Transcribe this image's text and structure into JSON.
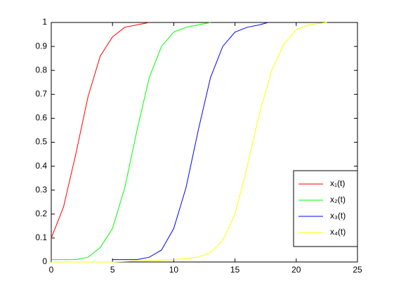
{
  "chart_data": {
    "type": "line",
    "xlim": [
      0,
      25
    ],
    "ylim": [
      0,
      1
    ],
    "xticks": [
      0,
      5,
      10,
      15,
      20,
      25
    ],
    "yticks": [
      0,
      0.1,
      0.2,
      0.3,
      0.4,
      0.5,
      0.6,
      0.7,
      0.8,
      0.9,
      1
    ],
    "legend": "lower right",
    "series": [
      {
        "name": "x₁(t)",
        "color": "#ff0000",
        "x": [
          0,
          1,
          2,
          3,
          4,
          5,
          6,
          7,
          8
        ],
        "values": [
          0.1,
          0.23,
          0.45,
          0.69,
          0.86,
          0.94,
          0.98,
          0.99,
          1.0
        ]
      },
      {
        "name": "x₂(t)",
        "color": "#00ff00",
        "x": [
          0,
          1,
          2,
          3,
          4,
          5,
          6,
          7,
          8,
          9,
          10,
          11,
          12,
          13
        ],
        "values": [
          0.01,
          0.01,
          0.01,
          0.02,
          0.06,
          0.14,
          0.31,
          0.55,
          0.77,
          0.9,
          0.96,
          0.98,
          0.99,
          1.0
        ]
      },
      {
        "name": "x₃(t)",
        "color": "#0000ff",
        "x": [
          5,
          6,
          7,
          8,
          9,
          10,
          11,
          12,
          13,
          14,
          15,
          16,
          17,
          17.7
        ],
        "values": [
          0.01,
          0.01,
          0.01,
          0.02,
          0.05,
          0.14,
          0.31,
          0.55,
          0.77,
          0.9,
          0.96,
          0.98,
          0.99,
          1.0
        ]
      },
      {
        "name": "x₄(t)",
        "color": "#ffff00",
        "x": [
          0,
          5,
          10,
          12,
          13,
          14,
          15,
          16,
          17,
          18,
          19,
          20,
          21,
          22.5
        ],
        "values": [
          0,
          0,
          0.01,
          0.02,
          0.04,
          0.09,
          0.2,
          0.4,
          0.62,
          0.8,
          0.91,
          0.97,
          0.99,
          1.0
        ]
      }
    ]
  }
}
